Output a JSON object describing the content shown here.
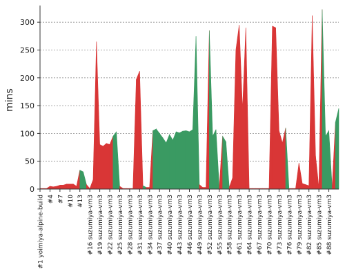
{
  "chart_data": {
    "type": "area",
    "ylabel": "mins",
    "ylim": [
      0,
      330
    ],
    "y_ticks": [
      0,
      50,
      100,
      150,
      200,
      250,
      300
    ],
    "grid": true,
    "colors": {
      "success": "#3a9a62",
      "failure": "#d93636"
    },
    "x_tick_labels": [
      "#1 yoimiya-alpine-build",
      "#4",
      "#7",
      "#10",
      "#13",
      "#16 suzumiya-vm3",
      "#19 suzumiya-vm3",
      "#22 suzumiya-vm3",
      "#25 suzumiya-vm3",
      "#28 suzumiya-vm3",
      "#31 suzumiya-vm3",
      "#34 suzumiya-vm3",
      "#37 suzumiya-vm3",
      "#40 suzumiya-vm3",
      "#43 suzumiya-vm3",
      "#46 suzumiya-vm3",
      "#49 suzumiya-vm3",
      "#52 suzumiya-vm3",
      "#55 suzumiya-vm3",
      "#58 suzumiya-vm3",
      "#61 suzumiya-vm3",
      "#64 suzumiya-vm3",
      "#67 suzumiya-vm3",
      "#70 suzumiya-vm3",
      "#73 suzumiya-vm3",
      "#76 suzumiya-vm3",
      "#79 suzumiya-vm3",
      "#82 suzumiya-vm3",
      "#85 suzumiya-vm3",
      "#88 suzumiya-vm3"
    ],
    "build_duration_mins": [
      1,
      1,
      1,
      5,
      4,
      5,
      7,
      7,
      9,
      9,
      9,
      5,
      34,
      31,
      8,
      1,
      17,
      265,
      80,
      77,
      82,
      80,
      95,
      103,
      5,
      1,
      1,
      1,
      1,
      197,
      212,
      6,
      3,
      3,
      105,
      108,
      100,
      92,
      83,
      98,
      88,
      103,
      101,
      104,
      105,
      103,
      107,
      275,
      8,
      3,
      3,
      285,
      95,
      107,
      3,
      95,
      85,
      3,
      20,
      250,
      295,
      143,
      290,
      1,
      1,
      1,
      1,
      1,
      1,
      1,
      293,
      290,
      105,
      83,
      110,
      1,
      1,
      1,
      47,
      10,
      8,
      6,
      312,
      60,
      3,
      323,
      95,
      105,
      3,
      120,
      145
    ],
    "build_status": [
      "failure",
      "failure",
      "failure",
      "failure",
      "failure",
      "failure",
      "failure",
      "failure",
      "failure",
      "failure",
      "failure",
      "failure",
      "success",
      "success",
      "failure",
      "failure",
      "failure",
      "failure",
      "failure",
      "failure",
      "failure",
      "failure",
      "success",
      "success",
      "failure",
      "failure",
      "failure",
      "failure",
      "failure",
      "failure",
      "failure",
      "success",
      "failure",
      "failure",
      "success",
      "success",
      "success",
      "success",
      "success",
      "success",
      "success",
      "success",
      "success",
      "success",
      "success",
      "success",
      "success",
      "success",
      "failure",
      "failure",
      "failure",
      "success",
      "success",
      "success",
      "failure",
      "success",
      "success",
      "failure",
      "failure",
      "failure",
      "failure",
      "failure",
      "failure",
      "failure",
      "failure",
      "failure",
      "failure",
      "failure",
      "failure",
      "failure",
      "failure",
      "failure",
      "failure",
      "failure",
      "success",
      "failure",
      "failure",
      "failure",
      "failure",
      "failure",
      "failure",
      "failure",
      "failure",
      "failure",
      "failure",
      "success",
      "success",
      "success",
      "failure",
      "success",
      "failure"
    ]
  }
}
